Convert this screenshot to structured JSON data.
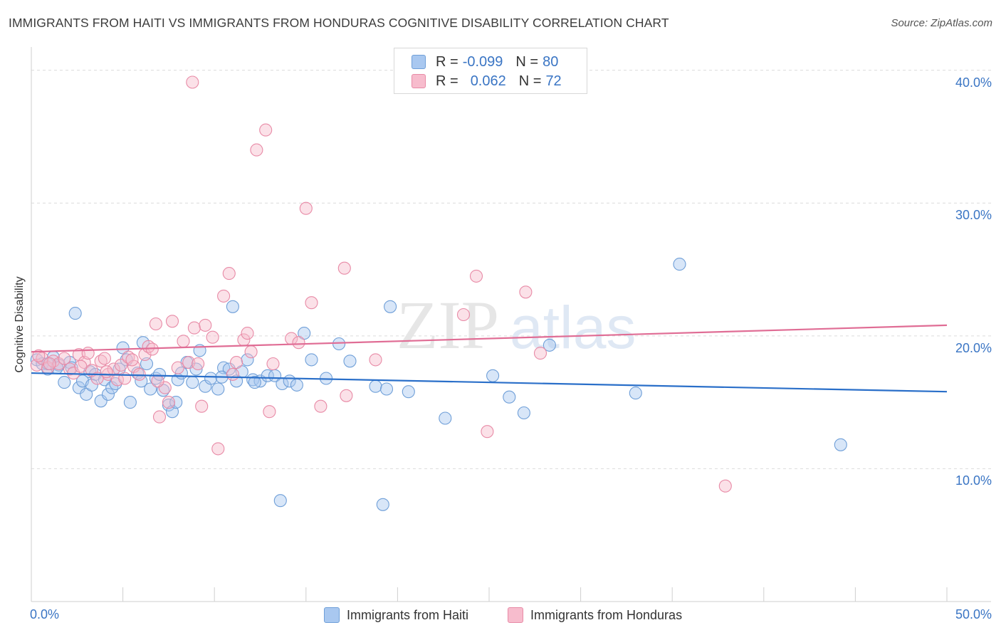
{
  "header": {
    "title": "IMMIGRANTS FROM HAITI VS IMMIGRANTS FROM HONDURAS COGNITIVE DISABILITY CORRELATION CHART",
    "source": "Source: ZipAtlas.com"
  },
  "legend": {
    "rows": [
      {
        "r_label": "R =",
        "r_value": "-0.099",
        "n_label": "N =",
        "n_value": "80",
        "color": "#a9c8f0",
        "border": "#6f9fd8"
      },
      {
        "r_label": "R =",
        "r_value": "0.062",
        "n_label": "N =",
        "n_value": "72",
        "color": "#f7bccd",
        "border": "#e88aa6"
      }
    ]
  },
  "watermark": {
    "zip": "ZIP",
    "atlas": "atlas"
  },
  "chart_data": {
    "type": "scatter",
    "ylabel": "Cognitive Disability",
    "x_tick_labels": [
      "0.0%",
      "50.0%"
    ],
    "y_tick_labels": [
      "10.0%",
      "20.0%",
      "30.0%",
      "40.0%"
    ],
    "xlim": [
      0,
      50
    ],
    "ylim": [
      0,
      41
    ],
    "grid": true,
    "legend_placement": "bottom-center",
    "series": [
      {
        "name": "Immigrants from Haiti",
        "color": "#6f9fd8",
        "fill": "#a9c8f0",
        "line_color": "#2a6fc9",
        "trend": [
          [
            0,
            17.2
          ],
          [
            50,
            15.8
          ]
        ],
        "points": [
          [
            0.3,
            18.2
          ],
          [
            0.6,
            17.9
          ],
          [
            0.9,
            17.5
          ],
          [
            1.2,
            18.4
          ],
          [
            1.5,
            17.8
          ],
          [
            1.8,
            16.5
          ],
          [
            2.1,
            18.0
          ],
          [
            2.2,
            17.6
          ],
          [
            2.4,
            21.7
          ],
          [
            2.6,
            16.1
          ],
          [
            2.8,
            16.6
          ],
          [
            3.0,
            15.6
          ],
          [
            3.2,
            17.3
          ],
          [
            3.5,
            17.1
          ],
          [
            3.8,
            15.1
          ],
          [
            4.0,
            16.7
          ],
          [
            4.2,
            15.6
          ],
          [
            4.4,
            16.1
          ],
          [
            4.6,
            16.4
          ],
          [
            4.8,
            17.5
          ],
          [
            5.0,
            19.1
          ],
          [
            5.2,
            18.2
          ],
          [
            5.4,
            15.0
          ],
          [
            5.8,
            17.2
          ],
          [
            6.0,
            16.6
          ],
          [
            6.1,
            19.5
          ],
          [
            6.3,
            17.9
          ],
          [
            6.5,
            16.0
          ],
          [
            6.8,
            16.8
          ],
          [
            7.0,
            17.1
          ],
          [
            7.2,
            15.9
          ],
          [
            7.5,
            14.8
          ],
          [
            7.7,
            14.3
          ],
          [
            8.0,
            16.7
          ],
          [
            8.2,
            17.2
          ],
          [
            8.5,
            18.0
          ],
          [
            8.8,
            16.5
          ],
          [
            9.0,
            17.5
          ],
          [
            9.2,
            18.9
          ],
          [
            9.5,
            16.2
          ],
          [
            9.8,
            16.8
          ],
          [
            10.2,
            16.0
          ],
          [
            10.5,
            17.6
          ],
          [
            10.8,
            17.5
          ],
          [
            11.0,
            22.2
          ],
          [
            11.2,
            16.6
          ],
          [
            11.5,
            17.3
          ],
          [
            11.8,
            18.2
          ],
          [
            12.1,
            16.7
          ],
          [
            12.5,
            16.6
          ],
          [
            12.9,
            17.0
          ],
          [
            13.3,
            17.0
          ],
          [
            13.7,
            16.4
          ],
          [
            14.1,
            16.6
          ],
          [
            14.5,
            16.3
          ],
          [
            14.9,
            20.2
          ],
          [
            15.3,
            18.2
          ],
          [
            16.1,
            16.8
          ],
          [
            16.8,
            19.4
          ],
          [
            17.4,
            18.1
          ],
          [
            18.8,
            16.2
          ],
          [
            19.4,
            16.0
          ],
          [
            19.6,
            22.2
          ],
          [
            20.6,
            15.8
          ],
          [
            22.6,
            13.8
          ],
          [
            25.2,
            17.0
          ],
          [
            26.1,
            15.4
          ],
          [
            26.9,
            14.2
          ],
          [
            28.3,
            19.3
          ],
          [
            33.0,
            15.7
          ],
          [
            35.4,
            25.4
          ],
          [
            44.2,
            11.8
          ],
          [
            13.6,
            7.6
          ],
          [
            19.2,
            7.3
          ],
          [
            0.9,
            17.9
          ],
          [
            1.4,
            17.6
          ],
          [
            3.3,
            16.3
          ],
          [
            7.9,
            15.0
          ],
          [
            10.4,
            16.9
          ],
          [
            12.2,
            16.5
          ]
        ]
      },
      {
        "name": "Immigrants from Honduras",
        "color": "#e88aa6",
        "fill": "#f7bccd",
        "line_color": "#e06d95",
        "trend": [
          [
            0,
            18.8
          ],
          [
            50,
            20.8
          ]
        ],
        "points": [
          [
            0.3,
            17.8
          ],
          [
            0.6,
            18.3
          ],
          [
            0.9,
            17.6
          ],
          [
            1.2,
            18.1
          ],
          [
            1.5,
            17.9
          ],
          [
            1.8,
            18.3
          ],
          [
            2.1,
            17.5
          ],
          [
            2.3,
            17.2
          ],
          [
            2.6,
            18.6
          ],
          [
            2.9,
            18.0
          ],
          [
            3.1,
            18.7
          ],
          [
            3.3,
            17.4
          ],
          [
            3.6,
            16.8
          ],
          [
            3.8,
            18.1
          ],
          [
            4.0,
            18.3
          ],
          [
            4.2,
            17.1
          ],
          [
            4.5,
            17.5
          ],
          [
            4.7,
            16.7
          ],
          [
            4.9,
            17.8
          ],
          [
            5.1,
            16.8
          ],
          [
            5.3,
            18.4
          ],
          [
            5.6,
            17.7
          ],
          [
            5.9,
            17.1
          ],
          [
            6.2,
            18.6
          ],
          [
            6.4,
            19.2
          ],
          [
            6.6,
            19.0
          ],
          [
            6.8,
            20.9
          ],
          [
            7.0,
            13.9
          ],
          [
            7.3,
            16.1
          ],
          [
            7.5,
            15.0
          ],
          [
            7.7,
            21.1
          ],
          [
            8.0,
            17.6
          ],
          [
            8.3,
            19.6
          ],
          [
            8.6,
            18.0
          ],
          [
            8.9,
            20.6
          ],
          [
            9.1,
            17.9
          ],
          [
            9.3,
            14.7
          ],
          [
            9.5,
            20.8
          ],
          [
            9.9,
            19.9
          ],
          [
            10.2,
            11.5
          ],
          [
            10.5,
            23.0
          ],
          [
            10.8,
            24.7
          ],
          [
            11.2,
            18.0
          ],
          [
            11.6,
            19.7
          ],
          [
            11.8,
            20.2
          ],
          [
            12.0,
            18.8
          ],
          [
            12.3,
            34.0
          ],
          [
            12.8,
            35.5
          ],
          [
            13.0,
            14.3
          ],
          [
            13.2,
            17.9
          ],
          [
            14.2,
            19.8
          ],
          [
            14.6,
            19.5
          ],
          [
            15.0,
            29.6
          ],
          [
            15.3,
            22.5
          ],
          [
            15.8,
            14.7
          ],
          [
            17.1,
            25.1
          ],
          [
            17.2,
            15.5
          ],
          [
            18.8,
            18.2
          ],
          [
            23.6,
            21.6
          ],
          [
            24.3,
            24.5
          ],
          [
            24.9,
            12.8
          ],
          [
            27.0,
            23.3
          ],
          [
            27.8,
            18.7
          ],
          [
            37.9,
            8.7
          ],
          [
            8.8,
            39.1
          ],
          [
            0.4,
            18.5
          ],
          [
            1.0,
            17.9
          ],
          [
            2.7,
            17.7
          ],
          [
            4.1,
            17.3
          ],
          [
            5.5,
            18.2
          ],
          [
            6.9,
            16.6
          ],
          [
            11.0,
            17.1
          ]
        ]
      }
    ]
  }
}
